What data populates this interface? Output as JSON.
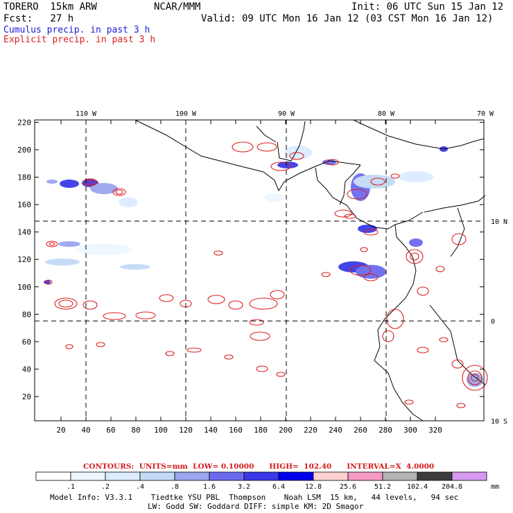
{
  "header": {
    "model": "TORERO  15km ARW",
    "center": "NCAR/MMM",
    "init": "Init: 06 UTC Sun 15 Jan 12",
    "fcst": "Fcst:   27 h",
    "valid": "Valid: 09 UTC Mon 16 Jan 12 (03 CST Mon 16 Jan 12)",
    "legend_cumulus": "Cumulus precip. in past 3 h",
    "legend_explicit": "Explicit precip. in past 3 h",
    "cumulus_color": "#1b1bd6",
    "explicit_color": "#dd1f1f"
  },
  "map": {
    "lon_labels_top": [
      "110 W",
      "100 W",
      "90 W",
      "80 W",
      "70 W"
    ],
    "lat_labels_right": [
      "10 N",
      "0",
      "10 S"
    ],
    "x_ticks": [
      "20",
      "40",
      "60",
      "80",
      "100",
      "120",
      "140",
      "160",
      "180",
      "200",
      "220",
      "240",
      "260",
      "280",
      "300",
      "320"
    ],
    "y_ticks": [
      "220",
      "200",
      "180",
      "160",
      "140",
      "120",
      "100",
      "80",
      "60",
      "40",
      "20"
    ]
  },
  "colorbar": {
    "contours_text": "CONTOURS:  UNITS=mm  LOW= 0.10000      HIGH=  102.40      INTERVAL=X  4.0000",
    "labels": [
      ".1",
      ".2",
      ".4",
      ".8",
      "1.6",
      "3.2",
      "6.4",
      "12.8",
      "25.6",
      "51.2",
      "102.4",
      "204.8"
    ],
    "units": "mm",
    "colors": [
      "#ffffff",
      "#eef6ff",
      "#dcebff",
      "#c2daf6",
      "#9aa6ee",
      "#6b6bf0",
      "#3a3ae8",
      "#0000ee",
      "#ffd2d2",
      "#f59ac0",
      "#b4b4b4",
      "#3c3c3c",
      "#d89af0"
    ]
  },
  "footer": {
    "line1": "Model Info: V3.3.1    Tiedtke YSU PBL  Thompson    Noah LSM  15 km,   44 levels,   94 sec",
    "line2": "LW: Godd SW: Goddard DIFF: simple KM: 2D Smagor"
  }
}
